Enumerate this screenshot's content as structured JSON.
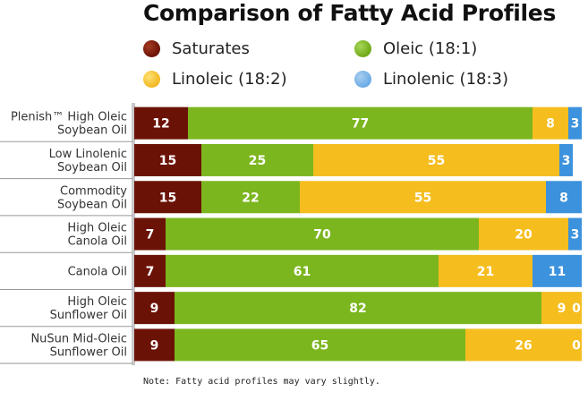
{
  "chart_data": {
    "type": "bar",
    "orientation": "horizontal",
    "stacked": true,
    "title": "Comparison of Fatty Acid Profiles",
    "categories": [
      [
        "Plenish™ High Oleic",
        "Soybean Oil"
      ],
      [
        "Low Linolenic",
        "Soybean Oil"
      ],
      [
        "Commodity",
        "Soybean Oil"
      ],
      [
        "High Oleic",
        "Canola Oil"
      ],
      [
        "Canola Oil"
      ],
      [
        "High Oleic",
        "Sunflower Oil"
      ],
      [
        "NuSun Mid-Oleic",
        "Sunflower Oil"
      ]
    ],
    "series": [
      {
        "name": "Saturates",
        "color": "#6b1206",
        "values": [
          12,
          15,
          15,
          7,
          7,
          9,
          9
        ]
      },
      {
        "name": "Oleic (18:1)",
        "color": "#7cb61f",
        "values": [
          77,
          25,
          22,
          70,
          61,
          82,
          65
        ]
      },
      {
        "name": "Linoleic (18:2)",
        "color": "#f5bd1e",
        "values": [
          8,
          55,
          55,
          20,
          21,
          9,
          26
        ]
      },
      {
        "name": "Linolenic (18:3)",
        "color": "#3c92dc",
        "values": [
          3,
          3,
          8,
          3,
          11,
          0,
          0
        ]
      }
    ],
    "xlim": [
      0,
      100
    ],
    "legend_position": "top",
    "grid": false
  },
  "note": "Note: Fatty acid profiles may vary slightly."
}
